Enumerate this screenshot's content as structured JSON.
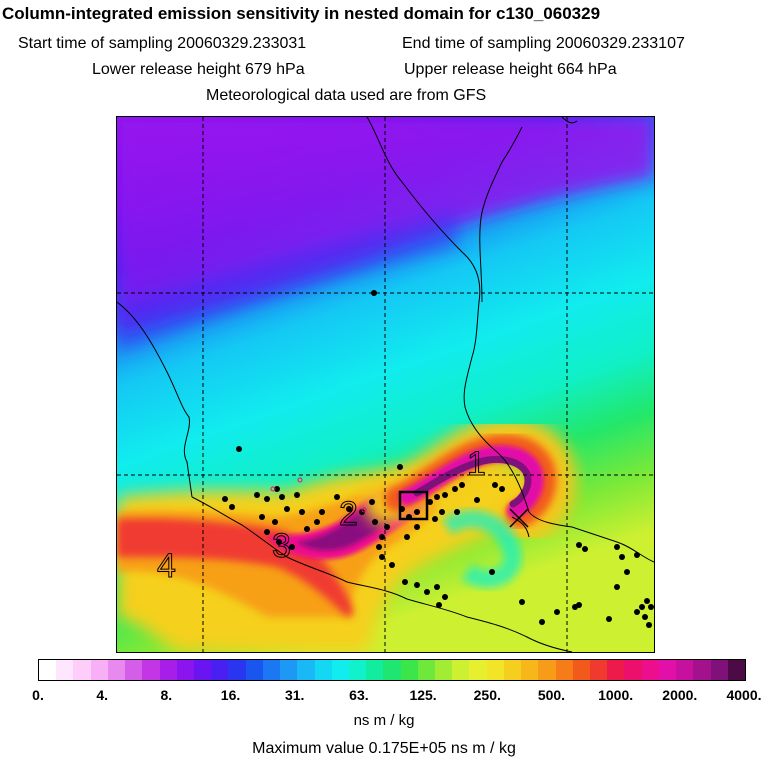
{
  "header": {
    "title": "Column-integrated emission sensitivity in nested domain for c130_060329",
    "start_label": "Start time of sampling 20060329.233031",
    "end_label": "End time of sampling 20060329.233107",
    "lower_label": "Lower release height  679 hPa",
    "upper_label": "Upper release height  664 hPa",
    "met_label": "Meteorological data used are from GFS"
  },
  "map": {
    "region_labels": [
      "1",
      "2",
      "3",
      "4"
    ]
  },
  "colorbar": {
    "colors": [
      "#ffffff",
      "#ffe6ff",
      "#ffcdfa",
      "#f7b0f5",
      "#e889f0",
      "#d55ee9",
      "#c236e6",
      "#a61ee8",
      "#8a15ef",
      "#6a14f2",
      "#4a1ff2",
      "#2a35f0",
      "#1a55f0",
      "#1b77f2",
      "#1d98f4",
      "#18b9f5",
      "#14d7f4",
      "#11ecee",
      "#10f1cc",
      "#12ec9f",
      "#1ee670",
      "#3be64a",
      "#6ee83a",
      "#a2ec33",
      "#cdf031",
      "#e7f02e",
      "#f2e426",
      "#f5cf1f",
      "#f7b71a",
      "#f79c18",
      "#f57c18",
      "#f25a1c",
      "#f03a30",
      "#ee1a4a",
      "#ec0f6c",
      "#ec0e8d",
      "#e20fa8",
      "#c7109e",
      "#a3128c",
      "#7e127a",
      "#4d0b45"
    ],
    "tick_labels": [
      "0.",
      "4.",
      "8.",
      "16.",
      "31.",
      "63.",
      "125.",
      "250.",
      "500.",
      "1000.",
      "2000.",
      "4000."
    ],
    "units": "ns m / kg",
    "max_value_label": "Maximum value  0.175E+05 ns m / kg"
  }
}
